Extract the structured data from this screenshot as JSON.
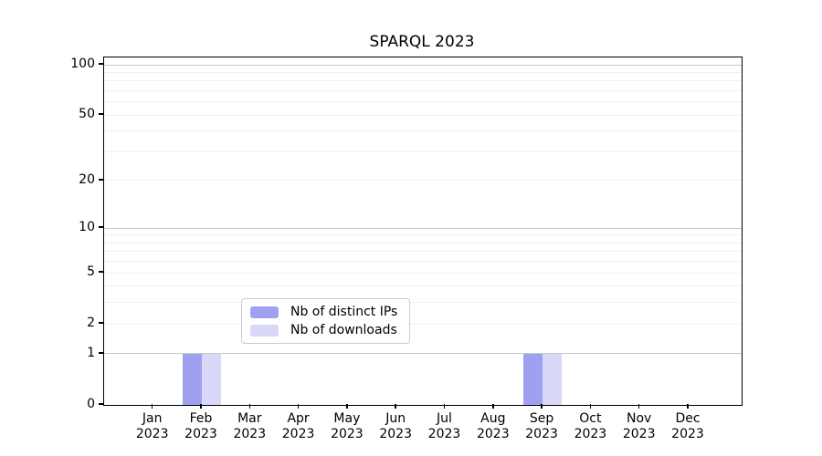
{
  "chart_data": {
    "type": "bar",
    "title": "SPARQL 2023",
    "categories": [
      "Jan",
      "Feb",
      "Mar",
      "Apr",
      "May",
      "Jun",
      "Jul",
      "Aug",
      "Sep",
      "Oct",
      "Nov",
      "Dec"
    ],
    "category_year": "2023",
    "series": [
      {
        "name": "Nb of distinct IPs",
        "color": "#a0a0f0",
        "values": [
          0,
          1,
          0,
          0,
          0,
          0,
          0,
          0,
          1,
          0,
          0,
          0
        ]
      },
      {
        "name": "Nb of downloads",
        "color": "#d8d8f8",
        "values": [
          0,
          1,
          0,
          0,
          0,
          0,
          0,
          0,
          1,
          0,
          0,
          0
        ]
      }
    ],
    "yscale": "log1p",
    "ylim": [
      0,
      110
    ],
    "ytick_labels": [
      "100",
      "50",
      "20",
      "10",
      "5",
      "2",
      "1",
      "0"
    ],
    "ytick_values": [
      100,
      50,
      20,
      10,
      5,
      2,
      1,
      0
    ],
    "major_gridlines": [
      1,
      10,
      100
    ],
    "minor_gridlines": [
      2,
      3,
      4,
      5,
      6,
      7,
      8,
      9,
      20,
      30,
      40,
      50,
      60,
      70,
      80,
      90
    ],
    "grid_colors": {
      "major": "#c8c8c8",
      "minor": "#f0f0f0"
    },
    "legend_position": "lower center"
  }
}
